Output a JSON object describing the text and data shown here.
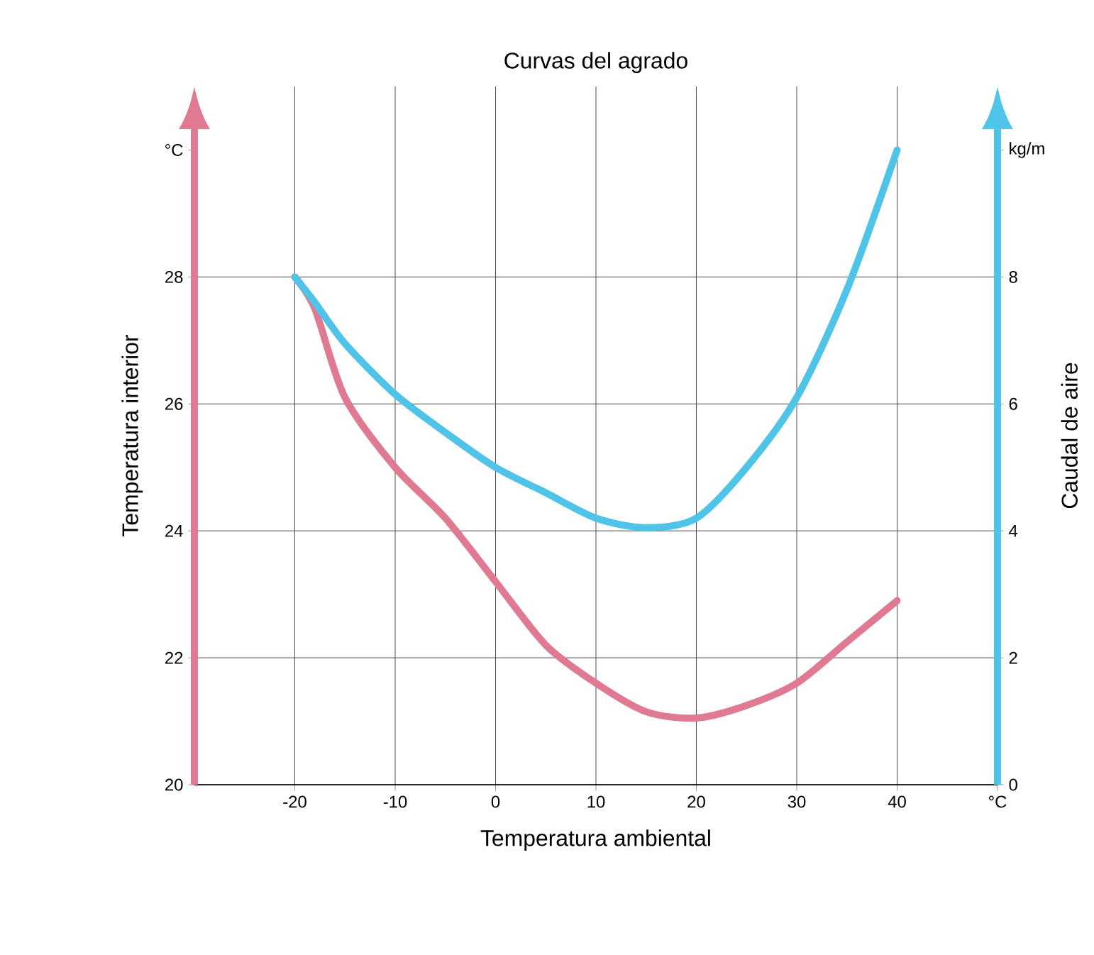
{
  "chart_data": {
    "type": "line",
    "title": "Curvas del agrado",
    "xlabel": "Temperatura ambiental",
    "ylabel": "Temperatura interior",
    "y2label": "Caudal de aire",
    "x": [
      -20,
      -18,
      -15,
      -10,
      -5,
      0,
      5,
      10,
      15,
      20,
      25,
      30,
      35,
      40
    ],
    "series": [
      {
        "color": "#e07a92",
        "values": [
          28,
          27.5,
          26.1,
          25.0,
          24.2,
          23.2,
          22.2,
          21.6,
          21.15,
          21.05,
          21.25,
          21.6,
          22.25,
          22.9
        ]
      },
      {
        "color": "#4fc3e8",
        "axis": "y2",
        "values": [
          8,
          7.6,
          6.95,
          6.15,
          5.55,
          5.0,
          4.6,
          4.2,
          4.05,
          4.2,
          5.0,
          6.1,
          7.8,
          10.0
        ]
      }
    ],
    "xlim": [
      -30,
      50
    ],
    "ylim": [
      20,
      31
    ],
    "y2lim": [
      0,
      11
    ],
    "xticks": [
      -20,
      -10,
      0,
      10,
      20,
      30,
      40,
      {
        "value": 50,
        "label": "°C"
      }
    ],
    "yticks": [
      20,
      22,
      24,
      26,
      28,
      {
        "value": 30,
        "label": "°C"
      }
    ],
    "y2ticks": [
      0,
      2,
      4,
      6,
      8,
      {
        "value": 10,
        "label": "kg/m"
      }
    ],
    "grid": true,
    "marker": "none",
    "line_style": "solid"
  }
}
